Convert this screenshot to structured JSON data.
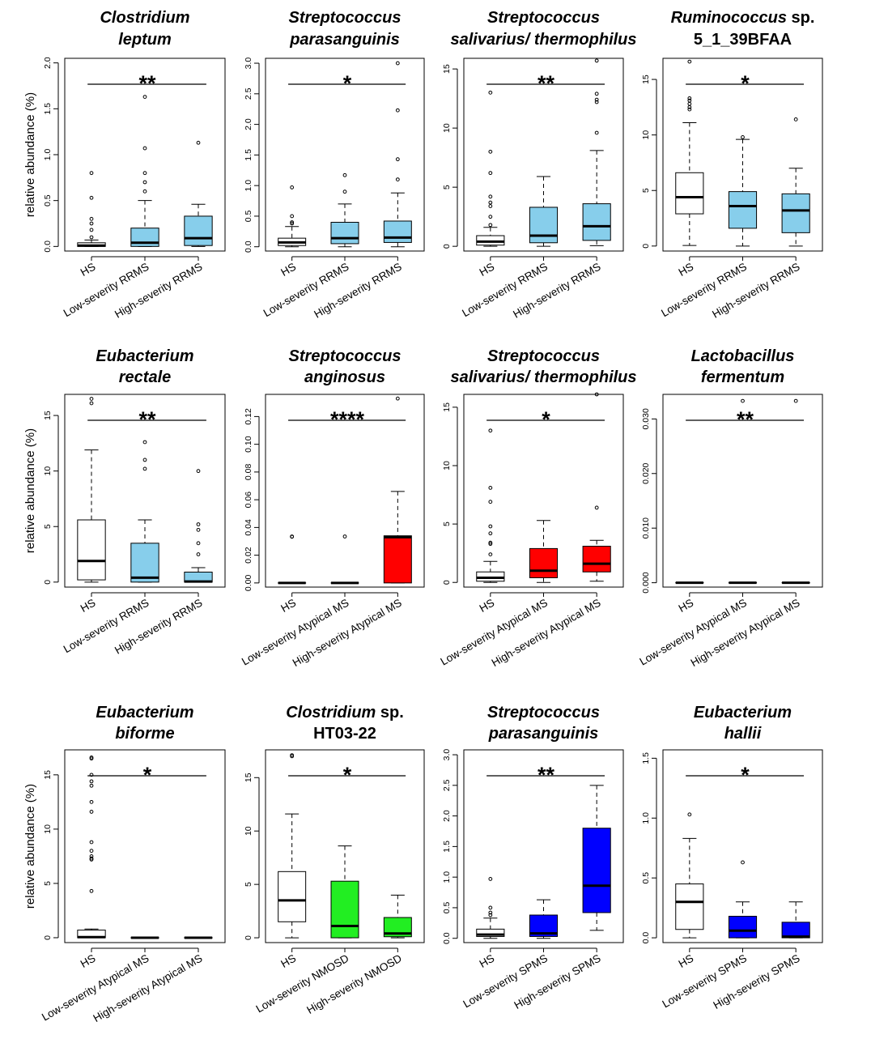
{
  "chart_data": [
    {
      "type": "box",
      "title": {
        "italic": "Clostridium leptum",
        "plain": ""
      },
      "ylabel": "relative abundance (%)",
      "yticks": [
        0,
        0.5,
        1.0,
        1.5,
        2.0
      ],
      "ytick_labels": [
        "0.0",
        "0.5",
        "1.0",
        "1.5",
        "2.0"
      ],
      "ylim": [
        -0.05,
        2.05
      ],
      "sig": "**",
      "groups": [
        {
          "name": "HS",
          "fill": "#ffffff",
          "q1": 0,
          "median": 0.01,
          "q3": 0.04,
          "lo": 0,
          "hi": 0.07,
          "outliers": [
            0.8,
            0.53,
            0.3,
            0.25,
            0.18,
            0.1
          ]
        },
        {
          "name": "Low-severity RRMS",
          "fill": "#87ceeb",
          "q1": 0,
          "median": 0.04,
          "q3": 0.2,
          "lo": 0,
          "hi": 0.5,
          "outliers": [
            1.63,
            1.07,
            0.8,
            0.7,
            0.6
          ]
        },
        {
          "name": "High-severity RRMS",
          "fill": "#87ceeb",
          "q1": 0.01,
          "median": 0.09,
          "q3": 0.33,
          "lo": 0,
          "hi": 0.46,
          "outliers": [
            1.13
          ]
        }
      ]
    },
    {
      "type": "box",
      "title": {
        "italic": "Streptococcus parasanguinis",
        "plain": ""
      },
      "ylabel": "",
      "yticks": [
        0,
        0.5,
        1.0,
        1.5,
        2.0,
        2.5,
        3.0
      ],
      "ytick_labels": [
        "0.0",
        "0.5",
        "1.0",
        "1.5",
        "2.0",
        "2.5",
        "3.0"
      ],
      "ylim": [
        -0.07,
        3.08
      ],
      "sig": "*",
      "groups": [
        {
          "name": "HS",
          "fill": "#ffffff",
          "q1": 0.02,
          "median": 0.07,
          "q3": 0.14,
          "lo": 0,
          "hi": 0.33,
          "outliers": [
            0.97,
            0.5,
            0.4,
            0.38
          ]
        },
        {
          "name": "Low-severity RRMS",
          "fill": "#87ceeb",
          "q1": 0.05,
          "median": 0.14,
          "q3": 0.4,
          "lo": 0,
          "hi": 0.7,
          "outliers": [
            1.17,
            0.9
          ]
        },
        {
          "name": "High-severity RRMS",
          "fill": "#87ceeb",
          "q1": 0.07,
          "median": 0.15,
          "q3": 0.42,
          "lo": 0,
          "hi": 0.88,
          "outliers": [
            3.0,
            2.23,
            1.43,
            1.1
          ]
        }
      ]
    },
    {
      "type": "box",
      "title": {
        "italic": "Streptococcus salivarius/ thermophilus",
        "plain": ""
      },
      "ylabel": "",
      "yticks": [
        0,
        5,
        10,
        15
      ],
      "ytick_labels": [
        "0",
        "5",
        "10",
        "15"
      ],
      "ylim": [
        -0.4,
        15.9
      ],
      "sig": "**",
      "groups": [
        {
          "name": "HS",
          "fill": "#ffffff",
          "q1": 0.1,
          "median": 0.4,
          "q3": 0.9,
          "lo": 0,
          "hi": 1.6,
          "outliers": [
            13.0,
            8.0,
            6.2,
            4.2,
            3.7,
            3.4,
            2.5,
            1.8
          ]
        },
        {
          "name": "Low-severity RRMS",
          "fill": "#87ceeb",
          "q1": 0.3,
          "median": 0.9,
          "q3": 3.3,
          "lo": 0,
          "hi": 5.9,
          "outliers": []
        },
        {
          "name": "High-severity RRMS",
          "fill": "#87ceeb",
          "q1": 0.5,
          "median": 1.7,
          "q3": 3.6,
          "lo": 0.05,
          "hi": 8.1,
          "outliers": [
            15.7,
            12.9,
            12.4,
            12.2,
            9.6
          ]
        }
      ]
    },
    {
      "type": "box",
      "title": {
        "italic": "Ruminococcus",
        "plain": " sp. 5_1_39BFAA"
      },
      "ylabel": "",
      "yticks": [
        0,
        5,
        10,
        15
      ],
      "ytick_labels": [
        "0",
        "5",
        "10",
        "15"
      ],
      "ylim": [
        -0.45,
        16.9
      ],
      "sig": "*",
      "groups": [
        {
          "name": "HS",
          "fill": "#ffffff",
          "q1": 2.9,
          "median": 4.4,
          "q3": 6.6,
          "lo": 0.05,
          "hi": 11.1,
          "outliers": [
            16.6,
            13.3,
            13.1,
            12.8,
            12.5,
            12.3
          ]
        },
        {
          "name": "Low-severity RRMS",
          "fill": "#87ceeb",
          "q1": 1.6,
          "median": 3.6,
          "q3": 4.9,
          "lo": 0,
          "hi": 9.6,
          "outliers": [
            9.8
          ]
        },
        {
          "name": "High-severity RRMS",
          "fill": "#87ceeb",
          "q1": 1.2,
          "median": 3.2,
          "q3": 4.7,
          "lo": 0,
          "hi": 7.0,
          "outliers": [
            11.4
          ]
        }
      ]
    },
    {
      "type": "box",
      "title": {
        "italic": "Eubacterium rectale",
        "plain": ""
      },
      "ylabel": "relative abundance (%)",
      "yticks": [
        0,
        5,
        10,
        15
      ],
      "ytick_labels": [
        "0",
        "5",
        "10",
        "15"
      ],
      "ylim": [
        -0.45,
        16.9
      ],
      "sig": "**",
      "groups": [
        {
          "name": "HS",
          "fill": "#ffffff",
          "q1": 0.2,
          "median": 1.9,
          "q3": 5.6,
          "lo": 0,
          "hi": 11.9,
          "outliers": [
            16.5,
            16.1
          ]
        },
        {
          "name": "Low-severity RRMS",
          "fill": "#87ceeb",
          "q1": 0,
          "median": 0.4,
          "q3": 3.5,
          "lo": 0,
          "hi": 5.6,
          "outliers": [
            12.6,
            11.0,
            10.2
          ]
        },
        {
          "name": "High-severity RRMS",
          "fill": "#87ceeb",
          "q1": 0,
          "median": 0.05,
          "q3": 0.9,
          "lo": 0,
          "hi": 1.3,
          "outliers": [
            10.0,
            5.2,
            4.7,
            3.5,
            2.5
          ]
        }
      ]
    },
    {
      "type": "box",
      "title": {
        "italic": "Streptococcus anginosus",
        "plain": ""
      },
      "ylabel": "",
      "yticks": [
        0,
        0.02,
        0.04,
        0.06,
        0.08,
        0.1,
        0.12
      ],
      "ytick_labels": [
        "0.00",
        "0.02",
        "0.04",
        "0.06",
        "0.08",
        "0.10",
        "0.12"
      ],
      "ylim": [
        -0.003,
        0.136
      ],
      "sig": "****",
      "groups": [
        {
          "name": "HS",
          "fill": "#ffffff",
          "q1": 0,
          "median": 0,
          "q3": 0,
          "lo": 0,
          "hi": 0,
          "outliers": [
            0.0335,
            0.0333
          ]
        },
        {
          "name": "Low-severity Atypical MS",
          "fill": "#ffffff",
          "q1": 0,
          "median": 0,
          "q3": 0,
          "lo": 0,
          "hi": 0,
          "outliers": [
            0.0335
          ]
        },
        {
          "name": "High-severity Atypical MS",
          "fill": "#ff0000",
          "q1": 0,
          "median": 0.033,
          "q3": 0.034,
          "lo": 0,
          "hi": 0.066,
          "outliers": [
            0.133
          ]
        }
      ]
    },
    {
      "type": "box",
      "title": {
        "italic": "Streptococcus salivarius/ thermophilus",
        "plain": ""
      },
      "ylabel": "",
      "yticks": [
        0,
        5,
        10,
        15
      ],
      "ytick_labels": [
        "0",
        "5",
        "10",
        "15"
      ],
      "ylim": [
        -0.4,
        16.1
      ],
      "sig": "*",
      "groups": [
        {
          "name": "HS",
          "fill": "#ffffff",
          "q1": 0.1,
          "median": 0.4,
          "q3": 0.9,
          "lo": 0,
          "hi": 1.8,
          "outliers": [
            13.0,
            8.1,
            6.9,
            4.8,
            4.2,
            3.4,
            3.3,
            2.4
          ]
        },
        {
          "name": "Low-severity Atypical MS",
          "fill": "#ff0000",
          "q1": 0.4,
          "median": 1.0,
          "q3": 2.9,
          "lo": 0,
          "hi": 5.3,
          "outliers": []
        },
        {
          "name": "High-severity Atypical MS",
          "fill": "#ff0000",
          "q1": 0.9,
          "median": 1.6,
          "q3": 3.1,
          "lo": 0.1,
          "hi": 3.6,
          "outliers": [
            16.1,
            6.4
          ]
        }
      ]
    },
    {
      "type": "box",
      "title": {
        "italic": "Lactobacillus fermentum",
        "plain": ""
      },
      "ylabel": "",
      "yticks": [
        0,
        0.01,
        0.02,
        0.03
      ],
      "ytick_labels": [
        "0.000",
        "0.010",
        "0.020",
        "0.030"
      ],
      "ylim": [
        -0.0008,
        0.0345
      ],
      "sig": "**",
      "groups": [
        {
          "name": "HS",
          "fill": "#ffffff",
          "q1": 0,
          "median": 0,
          "q3": 0,
          "lo": 0,
          "hi": 0,
          "outliers": []
        },
        {
          "name": "Low-severity Atypical MS",
          "fill": "#ffffff",
          "q1": 0,
          "median": 0,
          "q3": 0,
          "lo": 0,
          "hi": 0,
          "outliers": [
            0.0333
          ]
        },
        {
          "name": "High-severity Atypical MS",
          "fill": "#ffffff",
          "q1": 0,
          "median": 0,
          "q3": 0,
          "lo": 0,
          "hi": 0,
          "outliers": [
            0.0333
          ]
        }
      ]
    },
    {
      "type": "box",
      "title": {
        "italic": "Eubacterium biforme",
        "plain": ""
      },
      "ylabel": "relative abundance (%)",
      "yticks": [
        0,
        5,
        10,
        15
      ],
      "ytick_labels": [
        "0",
        "5",
        "10",
        "15"
      ],
      "ylim": [
        -0.45,
        17.3
      ],
      "sig": "*",
      "groups": [
        {
          "name": "HS",
          "fill": "#ffffff",
          "q1": 0,
          "median": 0.05,
          "q3": 0.7,
          "lo": 0,
          "hi": 0.8,
          "outliers": [
            16.6,
            16.5,
            15.0,
            14.4,
            14.0,
            12.5,
            11.6,
            8.8,
            8.0,
            7.5,
            7.3,
            7.2,
            4.3
          ]
        },
        {
          "name": "Low-severity Atypical MS",
          "fill": "#ffffff",
          "q1": 0,
          "median": 0,
          "q3": 0,
          "lo": 0,
          "hi": 0,
          "outliers": []
        },
        {
          "name": "High-severity Atypical MS",
          "fill": "#ffffff",
          "q1": 0,
          "median": 0,
          "q3": 0,
          "lo": 0,
          "hi": 0,
          "outliers": []
        }
      ]
    },
    {
      "type": "box",
      "title": {
        "italic": "Clostridium",
        "plain": " sp. HT03-22"
      },
      "ylabel": "",
      "yticks": [
        0,
        5,
        10,
        15
      ],
      "ytick_labels": [
        "0",
        "5",
        "10",
        "15"
      ],
      "ylim": [
        -0.45,
        17.6
      ],
      "sig": "*",
      "groups": [
        {
          "name": "HS",
          "fill": "#ffffff",
          "q1": 1.5,
          "median": 3.5,
          "q3": 6.2,
          "lo": 0,
          "hi": 11.6,
          "outliers": [
            17.1,
            17.0
          ]
        },
        {
          "name": "Low-severity NMOSD",
          "fill": "#22ee22",
          "q1": 0,
          "median": 1.1,
          "q3": 5.3,
          "lo": 0,
          "hi": 8.6,
          "outliers": []
        },
        {
          "name": "High-severity NMOSD",
          "fill": "#22ee22",
          "q1": 0.1,
          "median": 0.4,
          "q3": 1.9,
          "lo": 0,
          "hi": 4.0,
          "outliers": []
        }
      ]
    },
    {
      "type": "box",
      "title": {
        "italic": "Streptococcus parasanguinis",
        "plain": ""
      },
      "ylabel": "",
      "yticks": [
        0,
        0.5,
        1.0,
        1.5,
        2.0,
        2.5,
        3.0
      ],
      "ytick_labels": [
        "0.0",
        "0.5",
        "1.0",
        "1.5",
        "2.0",
        "2.5",
        "3.0"
      ],
      "ylim": [
        -0.07,
        3.08
      ],
      "sig": "**",
      "groups": [
        {
          "name": "HS",
          "fill": "#ffffff",
          "q1": 0.03,
          "median": 0.06,
          "q3": 0.15,
          "lo": 0,
          "hi": 0.33,
          "outliers": [
            0.97,
            0.5,
            0.42,
            0.38
          ]
        },
        {
          "name": "Low-severity SPMS",
          "fill": "#0000ff",
          "q1": 0.03,
          "median": 0.08,
          "q3": 0.38,
          "lo": 0,
          "hi": 0.63,
          "outliers": []
        },
        {
          "name": "High-severity SPMS",
          "fill": "#0000ff",
          "q1": 0.42,
          "median": 0.86,
          "q3": 1.8,
          "lo": 0.13,
          "hi": 2.5,
          "outliers": []
        }
      ]
    },
    {
      "type": "box",
      "title": {
        "italic": "Eubacterium hallii",
        "plain": ""
      },
      "ylabel": "",
      "yticks": [
        0,
        0.5,
        1.0,
        1.5
      ],
      "ytick_labels": [
        "0.0",
        "0.5",
        "1.0",
        "1.5"
      ],
      "ylim": [
        -0.04,
        1.57
      ],
      "sig": "*",
      "groups": [
        {
          "name": "HS",
          "fill": "#ffffff",
          "q1": 0.07,
          "median": 0.3,
          "q3": 0.45,
          "lo": 0,
          "hi": 0.83,
          "outliers": [
            1.03
          ]
        },
        {
          "name": "Low-severity SPMS",
          "fill": "#0000ff",
          "q1": 0,
          "median": 0.06,
          "q3": 0.18,
          "lo": 0,
          "hi": 0.3,
          "outliers": [
            0.63
          ]
        },
        {
          "name": "High-severity SPMS",
          "fill": "#0000ff",
          "q1": 0,
          "median": 0.01,
          "q3": 0.13,
          "lo": 0,
          "hi": 0.3,
          "outliers": []
        }
      ]
    }
  ]
}
